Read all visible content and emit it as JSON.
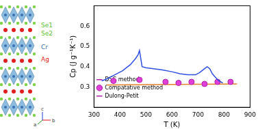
{
  "chart_data": {
    "type": "line",
    "x_label": "T (K)",
    "y_label": "Cp (J g⁻¹K⁻¹)",
    "xlim": [
      300,
      900
    ],
    "xticks": [
      300,
      400,
      500,
      600,
      700,
      800,
      900
    ],
    "ylim": [
      0.2,
      0.7
    ],
    "yticks": [
      0.3,
      0.4,
      0.5,
      0.6
    ],
    "grid": false,
    "legend": "upper right",
    "series": [
      {
        "name": "DSC method",
        "type": "line",
        "color": "#2f4fe0",
        "marker": "none",
        "line_style": "solid",
        "x": [
          330,
          350,
          380,
          410,
          440,
          460,
          470,
          475,
          480,
          485,
          500,
          530,
          560,
          600,
          630,
          660,
          690,
          705,
          720,
          735,
          745,
          755,
          765,
          780,
          795
        ],
        "values": [
          0.33,
          0.34,
          0.36,
          0.38,
          0.41,
          0.44,
          0.46,
          0.48,
          0.44,
          0.4,
          0.395,
          0.39,
          0.385,
          0.375,
          0.365,
          0.36,
          0.36,
          0.37,
          0.385,
          0.4,
          0.39,
          0.365,
          0.35,
          0.33,
          0.32
        ]
      },
      {
        "name": "Compatative method",
        "type": "scatter",
        "color": "#e040d8",
        "marker": "circle",
        "x": [
          375,
          475,
          575,
          625,
          675,
          725,
          775,
          825
        ],
        "values": [
          0.33,
          0.335,
          0.325,
          0.32,
          0.325,
          0.315,
          0.325,
          0.325
        ]
      },
      {
        "name": "Dulong-Petit",
        "type": "line",
        "color": "#e0802a",
        "marker": "none",
        "line_style": "solid",
        "x": [
          350,
          850
        ],
        "values": [
          0.31,
          0.315
        ]
      }
    ]
  },
  "diagram": {
    "labels": [
      "Se1",
      "Se2",
      "Cr",
      "Ag"
    ],
    "axes": [
      "a",
      "b",
      "c"
    ]
  }
}
